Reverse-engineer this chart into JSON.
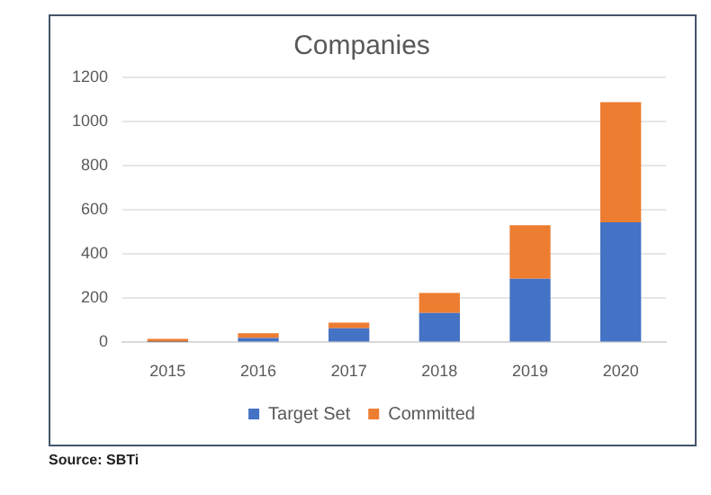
{
  "chart_data": {
    "type": "bar",
    "title": "Companies",
    "categories": [
      "2015",
      "2016",
      "2017",
      "2018",
      "2019",
      "2020"
    ],
    "series": [
      {
        "name": "Target Set",
        "color": "#4472c4",
        "values": [
          2,
          20,
          64,
          133,
          288,
          544
        ]
      },
      {
        "name": "Committed",
        "color": "#ed7d31",
        "values": [
          14,
          21,
          25,
          91,
          242,
          544
        ]
      }
    ],
    "stacked": true,
    "ylim": [
      0,
      1200
    ],
    "yticks": [
      0,
      200,
      400,
      600,
      800,
      1000,
      1200
    ],
    "grid": "y",
    "legend": "bottom",
    "annotations": [
      "Source: SBTi"
    ]
  }
}
